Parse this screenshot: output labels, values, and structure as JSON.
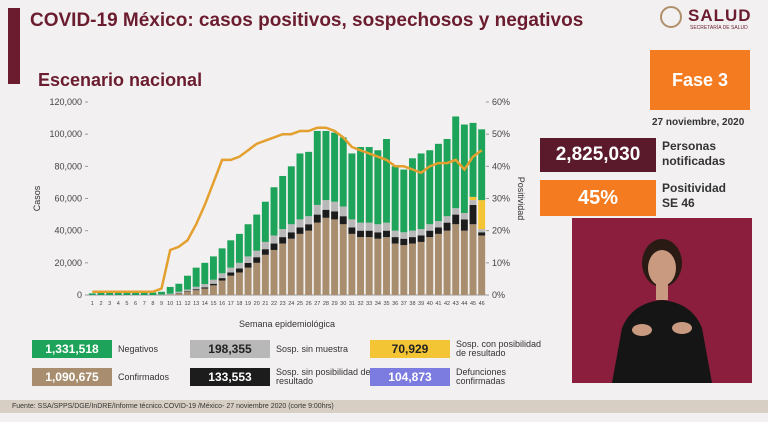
{
  "header": {
    "title": "COVID-19 México: casos positivos, sospechosos y negativos",
    "subtitle": "Escenario nacional",
    "logo": "SALUD",
    "logo_sub": "SECRETARÍA DE SALUD"
  },
  "panel": {
    "phase": "Fase 3",
    "date": "27 noviembre, 2020",
    "notified": {
      "value": "2,825,030",
      "label": "Personas notificadas"
    },
    "positivity": {
      "value": "45%",
      "label": "Positividad SE 46"
    }
  },
  "footer": {
    "source": "Fuente: SSA/SPPS/DGE/InDRE/Informe técnico.COVID-19 /México- 27 noviembre 2020 (corte 9:00hrs)"
  },
  "chart_data": {
    "type": "bar",
    "stacked": true,
    "x_label": "Semana epidemiológica",
    "y_label": "Casos",
    "y2_label": "Positividad",
    "categories": [
      "1",
      "2",
      "3",
      "4",
      "5",
      "6",
      "7",
      "8",
      "9",
      "10",
      "11",
      "12",
      "13",
      "14",
      "15",
      "16",
      "17",
      "18",
      "19",
      "20",
      "21",
      "22",
      "23",
      "24",
      "25",
      "26",
      "27",
      "28",
      "29",
      "30",
      "31",
      "32",
      "33",
      "34",
      "35",
      "36",
      "37",
      "38",
      "39",
      "40",
      "41",
      "42",
      "43",
      "44",
      "45",
      "46"
    ],
    "ylim": [
      0,
      120000
    ],
    "yticks": [
      0,
      {
        "value": 20000,
        "label": "20,000"
      },
      {
        "value": 40000,
        "label": "40,000"
      },
      {
        "value": 60000,
        "label": "60,000"
      },
      {
        "value": 80000,
        "label": "80,000"
      },
      {
        "value": 100000,
        "label": "100,000"
      },
      {
        "value": 120000,
        "label": "120,000"
      }
    ],
    "y2lim": [
      0,
      60
    ],
    "y2ticks": [
      {
        "value": 0,
        "label": "0%"
      },
      {
        "value": 10,
        "label": "10%"
      },
      {
        "value": 20,
        "label": "20%"
      },
      {
        "value": 30,
        "label": "30%"
      },
      {
        "value": 40,
        "label": "40%"
      },
      {
        "value": 50,
        "label": "50%"
      },
      {
        "value": 60,
        "label": "60%"
      }
    ],
    "series": [
      {
        "name": "Confirmados",
        "color": "#a88e6e",
        "total": {
          "value": 1090675,
          "label": "1,090,675"
        },
        "values": [
          0,
          0,
          0,
          0,
          0,
          0,
          0,
          0,
          100,
          300,
          1000,
          2000,
          3000,
          4000,
          6000,
          9000,
          12000,
          14000,
          17000,
          20000,
          25000,
          28000,
          32000,
          35000,
          38000,
          40000,
          45000,
          48000,
          47000,
          44000,
          38000,
          36000,
          36000,
          35000,
          36000,
          32000,
          31000,
          32000,
          33000,
          36000,
          38000,
          40000,
          44000,
          40000,
          44000,
          37000
        ]
      },
      {
        "name": "Sosp. sin posibilidad de resultado",
        "color": "#1c1c1c",
        "total": {
          "value": 133553,
          "label": "133,553"
        },
        "values": [
          0,
          0,
          0,
          0,
          0,
          0,
          0,
          0,
          0,
          0,
          200,
          400,
          600,
          800,
          1000,
          1500,
          2000,
          2500,
          3000,
          3500,
          3500,
          4000,
          4000,
          4000,
          4000,
          4000,
          5000,
          5000,
          5000,
          5000,
          4000,
          4000,
          4000,
          4000,
          4000,
          4000,
          4000,
          4000,
          4000,
          4000,
          4000,
          5000,
          6000,
          7000,
          12000,
          2000
        ]
      },
      {
        "name": "Sosp. sin muestra",
        "color": "#b8b8b8",
        "total": {
          "value": 198355,
          "label": "198,355"
        },
        "values": [
          0,
          0,
          0,
          0,
          0,
          0,
          0,
          0,
          200,
          500,
          800,
          1000,
          1500,
          2000,
          2500,
          3000,
          3000,
          3500,
          4000,
          4000,
          4500,
          5000,
          5000,
          5000,
          5000,
          5000,
          6000,
          6000,
          6000,
          6000,
          5000,
          5000,
          5000,
          5000,
          5000,
          4000,
          4000,
          4000,
          4000,
          4000,
          4000,
          4000,
          4000,
          4000,
          3000,
          2000
        ]
      },
      {
        "name": "Sosp. con posibilidad de resultado",
        "color": "#f3c433",
        "total": {
          "value": 70929,
          "label": "70,929"
        },
        "values": [
          0,
          0,
          0,
          0,
          0,
          0,
          0,
          0,
          0,
          0,
          0,
          0,
          0,
          0,
          0,
          0,
          0,
          0,
          0,
          0,
          0,
          0,
          0,
          0,
          0,
          0,
          0,
          0,
          0,
          0,
          0,
          0,
          0,
          0,
          0,
          0,
          0,
          0,
          0,
          0,
          0,
          0,
          0,
          0,
          2000,
          18000
        ]
      },
      {
        "name": "Negativos",
        "color": "#1ea35a",
        "total": {
          "value": 1331518,
          "label": "1,331,518"
        },
        "values": [
          1000,
          1500,
          2000,
          2000,
          2000,
          1500,
          1500,
          1500,
          1700,
          4200,
          5000,
          8600,
          11900,
          13200,
          14500,
          15500,
          17000,
          18000,
          20000,
          22500,
          25000,
          30000,
          33000,
          36000,
          41000,
          40000,
          46000,
          43000,
          43000,
          43000,
          41000,
          47000,
          47000,
          46000,
          52000,
          40000,
          39000,
          45000,
          47000,
          46000,
          48000,
          48000,
          57000,
          55000,
          46000,
          44000
        ]
      },
      {
        "type": "line",
        "axis": "y2",
        "color": "#e3a02e",
        "values": [
          1,
          1,
          1,
          1,
          1,
          1,
          1,
          1,
          2,
          14,
          15,
          17,
          22,
          28,
          35,
          42,
          42,
          43,
          45,
          47,
          48,
          49,
          50,
          50,
          51,
          51,
          52,
          52,
          51,
          49,
          46,
          45,
          44,
          43,
          42,
          40,
          40,
          39,
          38,
          40,
          41,
          41,
          42,
          39,
          43,
          45
        ]
      }
    ],
    "legend_extra": {
      "name": "Defunciones confirmadas",
      "color": "#7b7be0",
      "total": {
        "value": 104873,
        "label": "104,873"
      }
    }
  }
}
